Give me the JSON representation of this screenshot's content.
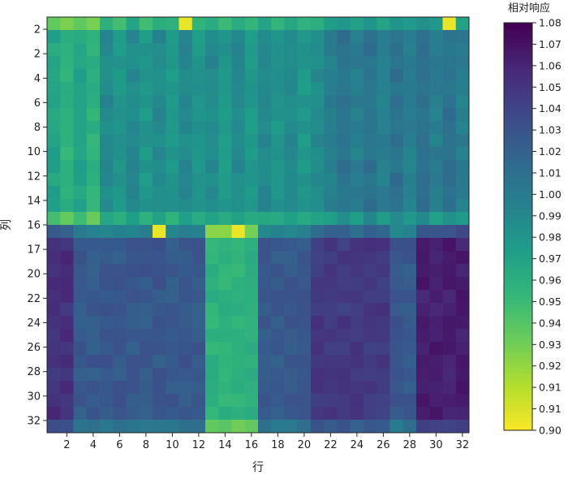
{
  "chart_data": {
    "type": "heatmap",
    "xlabel": "行",
    "ylabel": "列",
    "colorbar_label": "相对响应",
    "x_ticks": [
      "2",
      "4",
      "6",
      "8",
      "10",
      "12",
      "14",
      "16",
      "18",
      "20",
      "22",
      "24",
      "26",
      "28",
      "30",
      "32"
    ],
    "y_ticks": [
      "2",
      "2",
      "4",
      "6",
      "8",
      "10",
      "12",
      "14",
      "16",
      "17",
      "20",
      "22",
      "24",
      "26",
      "28",
      "30",
      "32"
    ],
    "colorbar_ticks": [
      "1.08",
      "1.07",
      "1.06",
      "1.05",
      "1.04",
      "1.03",
      "1.02",
      "1.01",
      "1.00",
      "0.99",
      "0.98",
      "0.97",
      "0.96",
      "0.95",
      "0.94",
      "0.93",
      "0.92",
      "0.91",
      "0.91",
      "0.90"
    ],
    "zlim": [
      0.9,
      1.08
    ],
    "colormap": "viridis-reversed",
    "grid": false,
    "values_description_only": false,
    "values": []
  }
}
